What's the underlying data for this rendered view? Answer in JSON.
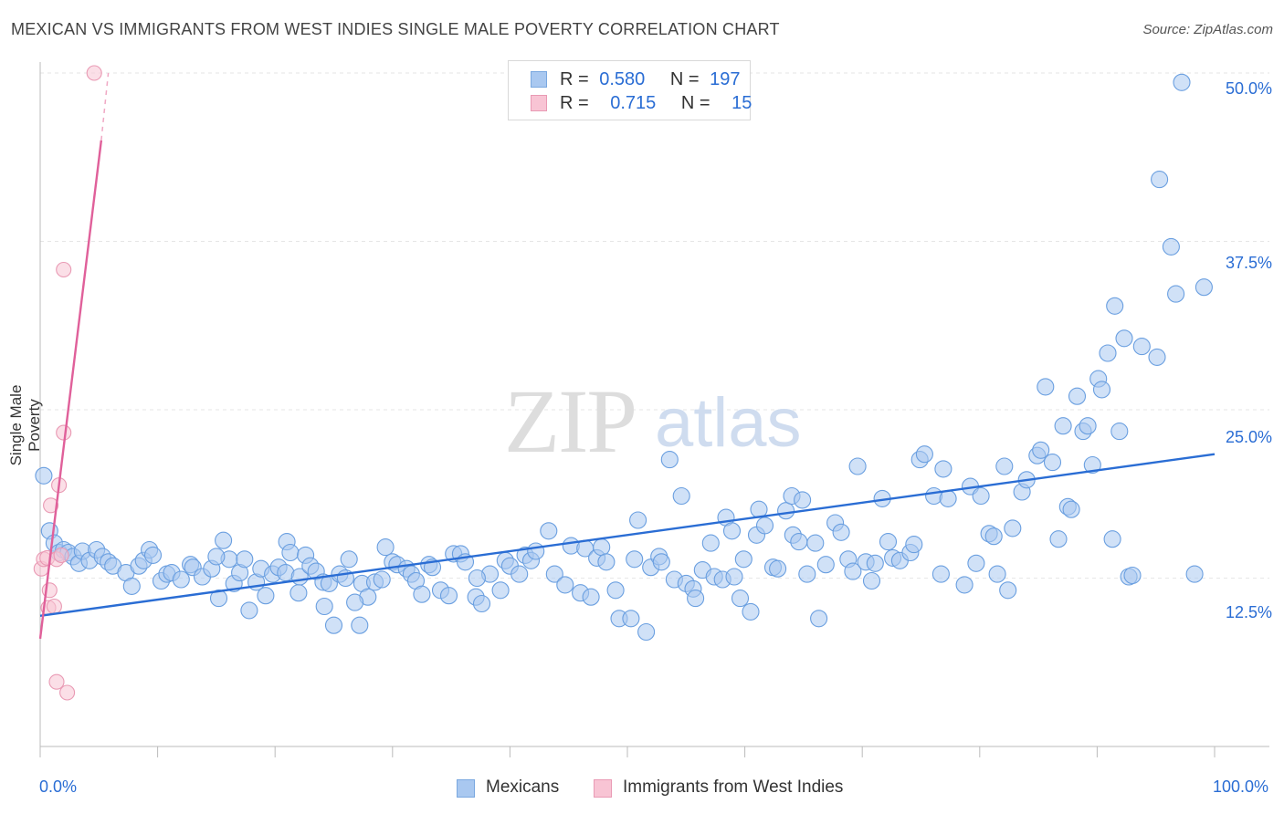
{
  "header": {
    "title": "MEXICAN VS IMMIGRANTS FROM WEST INDIES SINGLE MALE POVERTY CORRELATION CHART",
    "source": "Source: ZipAtlas.com"
  },
  "watermark": {
    "zip": "ZIP",
    "atlas": "atlas"
  },
  "legend": {
    "rows": [
      {
        "r_label": "R =",
        "r_value": "0.580",
        "n_label": "N =",
        "n_value": "197",
        "color": "#a9c8f0",
        "border": "#7aa8e0"
      },
      {
        "r_label": "R =",
        "r_value": "0.715",
        "n_label": "N =",
        "n_value": "15",
        "color": "#f8c4d4",
        "border": "#e99ab4"
      }
    ]
  },
  "bottom_legend": {
    "items": [
      {
        "label": "Mexicans",
        "color": "#a9c8f0",
        "border": "#7aa8e0"
      },
      {
        "label": "Immigrants from West Indies",
        "color": "#f8c4d4",
        "border": "#e99ab4"
      }
    ]
  },
  "chart_data": {
    "type": "scatter",
    "title": "MEXICAN VS IMMIGRANTS FROM WEST INDIES SINGLE MALE POVERTY CORRELATION CHART",
    "xlabel": "",
    "ylabel": "Single Male Poverty",
    "xlim": [
      0,
      100
    ],
    "ylim": [
      0,
      50
    ],
    "x_tick_labels": [
      "0.0%",
      "100.0%"
    ],
    "y_ticks": [
      {
        "value": 12.5,
        "label": "12.5%"
      },
      {
        "value": 25.0,
        "label": "25.0%"
      },
      {
        "value": 37.5,
        "label": "37.5%"
      },
      {
        "value": 50.0,
        "label": "50.0%"
      }
    ],
    "colors": {
      "mexicans": "#2a6dd4",
      "mexicans_fill": "#a9c8f0",
      "westindies": "#e0609a",
      "westindies_fill": "#f8c4d4",
      "grid": "#e6e6e6"
    },
    "series": [
      {
        "name": "Mexicans",
        "r": 0.58,
        "n": 197,
        "trendline": {
          "x": [
            0,
            100
          ],
          "y": [
            9.7,
            21.7
          ]
        },
        "points": [
          [
            0.3,
            20.1
          ],
          [
            0.8,
            16.0
          ],
          [
            1.2,
            15.1
          ],
          [
            1.6,
            14.4
          ],
          [
            2.0,
            14.6
          ],
          [
            2.4,
            14.4
          ],
          [
            2.8,
            14.1
          ],
          [
            3.3,
            13.6
          ],
          [
            3.6,
            14.5
          ],
          [
            4.2,
            13.8
          ],
          [
            4.8,
            14.6
          ],
          [
            5.3,
            14.1
          ],
          [
            5.8,
            13.7
          ],
          [
            6.2,
            13.4
          ],
          [
            7.3,
            12.9
          ],
          [
            7.8,
            11.9
          ],
          [
            8.4,
            13.4
          ],
          [
            8.8,
            13.8
          ],
          [
            9.3,
            14.6
          ],
          [
            9.6,
            14.2
          ],
          [
            10.3,
            12.3
          ],
          [
            10.8,
            12.8
          ],
          [
            11.2,
            12.9
          ],
          [
            12.0,
            12.4
          ],
          [
            12.8,
            13.5
          ],
          [
            13.0,
            13.3
          ],
          [
            13.8,
            12.6
          ],
          [
            14.6,
            13.2
          ],
          [
            15.2,
            11.0
          ],
          [
            15.6,
            15.3
          ],
          [
            16.1,
            13.9
          ],
          [
            16.5,
            12.1
          ],
          [
            17.0,
            12.9
          ],
          [
            17.4,
            13.9
          ],
          [
            17.8,
            10.1
          ],
          [
            18.4,
            12.2
          ],
          [
            18.8,
            13.2
          ],
          [
            19.2,
            11.2
          ],
          [
            19.8,
            12.8
          ],
          [
            20.3,
            13.3
          ],
          [
            20.9,
            12.9
          ],
          [
            21.0,
            15.2
          ],
          [
            21.3,
            14.4
          ],
          [
            22.0,
            11.4
          ],
          [
            22.1,
            12.6
          ],
          [
            22.6,
            14.2
          ],
          [
            23.0,
            13.4
          ],
          [
            23.5,
            13.0
          ],
          [
            24.1,
            12.2
          ],
          [
            24.2,
            10.4
          ],
          [
            24.6,
            12.1
          ],
          [
            25.0,
            9.0
          ],
          [
            25.5,
            12.8
          ],
          [
            26.0,
            12.5
          ],
          [
            26.3,
            13.9
          ],
          [
            27.2,
            9.0
          ],
          [
            27.4,
            12.1
          ],
          [
            27.9,
            11.1
          ],
          [
            28.5,
            12.2
          ],
          [
            29.1,
            12.4
          ],
          [
            29.4,
            14.8
          ],
          [
            30.0,
            13.7
          ],
          [
            30.4,
            13.5
          ],
          [
            31.2,
            13.2
          ],
          [
            31.6,
            12.8
          ],
          [
            32.0,
            12.3
          ],
          [
            32.5,
            11.3
          ],
          [
            33.1,
            13.5
          ],
          [
            33.4,
            13.3
          ],
          [
            34.1,
            11.6
          ],
          [
            34.8,
            11.2
          ],
          [
            35.2,
            14.3
          ],
          [
            35.8,
            14.3
          ],
          [
            36.2,
            13.7
          ],
          [
            37.1,
            11.1
          ],
          [
            37.6,
            10.6
          ],
          [
            38.3,
            12.8
          ],
          [
            39.2,
            11.6
          ],
          [
            39.6,
            13.8
          ],
          [
            40.0,
            13.4
          ],
          [
            40.8,
            12.8
          ],
          [
            41.3,
            14.2
          ],
          [
            41.8,
            13.8
          ],
          [
            42.2,
            14.5
          ],
          [
            43.3,
            16.0
          ],
          [
            43.8,
            12.8
          ],
          [
            44.7,
            12.0
          ],
          [
            45.2,
            14.9
          ],
          [
            46.0,
            11.4
          ],
          [
            46.4,
            14.7
          ],
          [
            46.9,
            11.1
          ],
          [
            47.4,
            14.0
          ],
          [
            47.8,
            14.8
          ],
          [
            48.2,
            13.7
          ],
          [
            49.0,
            11.6
          ],
          [
            49.3,
            9.5
          ],
          [
            50.3,
            9.5
          ],
          [
            50.6,
            13.9
          ],
          [
            50.9,
            16.8
          ],
          [
            51.6,
            8.5
          ],
          [
            52.0,
            13.3
          ],
          [
            52.7,
            14.1
          ],
          [
            52.9,
            13.7
          ],
          [
            53.6,
            21.3
          ],
          [
            54.0,
            12.4
          ],
          [
            54.6,
            18.6
          ],
          [
            55.0,
            12.1
          ],
          [
            55.6,
            11.7
          ],
          [
            55.8,
            11.0
          ],
          [
            56.4,
            13.1
          ],
          [
            57.1,
            15.1
          ],
          [
            57.4,
            12.6
          ],
          [
            58.1,
            12.4
          ],
          [
            58.4,
            17.0
          ],
          [
            59.1,
            12.6
          ],
          [
            59.6,
            11.0
          ],
          [
            59.9,
            13.9
          ],
          [
            60.5,
            10.0
          ],
          [
            61.0,
            15.7
          ],
          [
            61.2,
            17.6
          ],
          [
            61.7,
            16.4
          ],
          [
            62.4,
            13.3
          ],
          [
            62.8,
            13.2
          ],
          [
            63.5,
            17.5
          ],
          [
            64.0,
            18.6
          ],
          [
            64.1,
            15.7
          ],
          [
            64.6,
            15.2
          ],
          [
            65.3,
            12.8
          ],
          [
            66.0,
            15.1
          ],
          [
            66.3,
            9.5
          ],
          [
            66.9,
            13.5
          ],
          [
            67.7,
            16.6
          ],
          [
            68.2,
            15.9
          ],
          [
            68.8,
            13.9
          ],
          [
            69.2,
            13.0
          ],
          [
            69.6,
            20.8
          ],
          [
            70.3,
            13.7
          ],
          [
            70.8,
            12.3
          ],
          [
            71.1,
            13.6
          ],
          [
            71.7,
            18.4
          ],
          [
            72.2,
            15.2
          ],
          [
            72.6,
            14.0
          ],
          [
            73.2,
            13.8
          ],
          [
            74.1,
            14.4
          ],
          [
            74.4,
            15.0
          ],
          [
            74.9,
            21.3
          ],
          [
            75.3,
            21.7
          ],
          [
            76.1,
            18.6
          ],
          [
            76.7,
            12.8
          ],
          [
            76.9,
            20.6
          ],
          [
            77.3,
            18.4
          ],
          [
            78.7,
            12.0
          ],
          [
            79.2,
            19.3
          ],
          [
            79.7,
            13.6
          ],
          [
            80.1,
            18.6
          ],
          [
            80.8,
            15.8
          ],
          [
            81.2,
            15.6
          ],
          [
            81.5,
            12.8
          ],
          [
            82.1,
            20.8
          ],
          [
            82.4,
            11.6
          ],
          [
            82.8,
            16.2
          ],
          [
            83.6,
            18.9
          ],
          [
            84.0,
            19.8
          ],
          [
            84.9,
            21.6
          ],
          [
            85.2,
            22.0
          ],
          [
            85.6,
            26.7
          ],
          [
            86.2,
            21.1
          ],
          [
            86.7,
            15.4
          ],
          [
            87.1,
            23.8
          ],
          [
            87.5,
            17.8
          ],
          [
            87.8,
            17.6
          ],
          [
            88.3,
            26.0
          ],
          [
            88.8,
            23.4
          ],
          [
            89.2,
            23.8
          ],
          [
            89.6,
            20.9
          ],
          [
            90.1,
            27.3
          ],
          [
            90.4,
            26.5
          ],
          [
            90.9,
            29.2
          ],
          [
            91.3,
            15.4
          ],
          [
            91.5,
            32.7
          ],
          [
            91.9,
            23.4
          ],
          [
            92.3,
            30.3
          ],
          [
            92.7,
            12.6
          ],
          [
            93.0,
            12.7
          ],
          [
            93.8,
            29.7
          ],
          [
            95.1,
            28.9
          ],
          [
            95.3,
            42.1
          ],
          [
            96.3,
            37.1
          ],
          [
            96.7,
            33.6
          ],
          [
            97.2,
            49.3
          ],
          [
            98.3,
            12.8
          ],
          [
            99.1,
            34.1
          ],
          [
            37.2,
            12.5
          ],
          [
            15.0,
            14.1
          ],
          [
            64.9,
            18.3
          ],
          [
            58.9,
            16.0
          ],
          [
            26.8,
            10.7
          ]
        ]
      },
      {
        "name": "Immigrants from West Indies",
        "r": 0.715,
        "n": 15,
        "trendline": {
          "x": [
            0,
            5.2
          ],
          "y": [
            8.0,
            45.0
          ],
          "dashed_extension": {
            "x": [
              5.2,
              5.8
            ],
            "y": [
              45.0,
              50.0
            ]
          }
        },
        "points": [
          [
            0.1,
            13.2
          ],
          [
            0.3,
            13.9
          ],
          [
            0.6,
            14.0
          ],
          [
            0.8,
            11.6
          ],
          [
            0.7,
            10.3
          ],
          [
            0.9,
            17.9
          ],
          [
            1.2,
            10.4
          ],
          [
            1.4,
            13.9
          ],
          [
            1.6,
            19.4
          ],
          [
            1.8,
            14.2
          ],
          [
            2.0,
            23.3
          ],
          [
            2.0,
            35.4
          ],
          [
            1.4,
            4.8
          ],
          [
            2.3,
            4.0
          ],
          [
            4.6,
            50.0
          ]
        ]
      }
    ]
  }
}
